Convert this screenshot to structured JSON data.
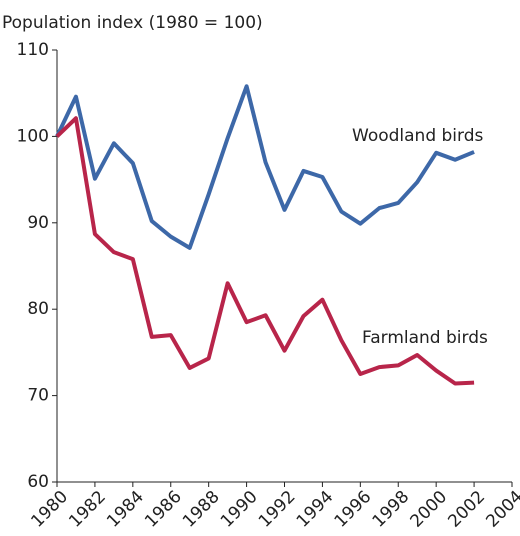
{
  "chart_data": {
    "type": "line",
    "title": "Population index (1980 = 100)",
    "x": [
      1980,
      1981,
      1982,
      1983,
      1984,
      1985,
      1986,
      1987,
      1988,
      1989,
      1990,
      1991,
      1992,
      1993,
      1994,
      1995,
      1996,
      1997,
      1998,
      1999,
      2000,
      2001,
      2002
    ],
    "series": [
      {
        "name": "Woodland birds",
        "color": "#3d68a8",
        "values": [
          100,
          104.6,
          95.1,
          99.2,
          96.9,
          90.2,
          88.4,
          87.1,
          93.3,
          99.8,
          105.8,
          97.0,
          91.5,
          96.0,
          95.3,
          91.3,
          89.9,
          91.7,
          92.3,
          94.7,
          98.1,
          97.3,
          98.2
        ]
      },
      {
        "name": "Farmland birds",
        "color": "#b8254a",
        "values": [
          100,
          102.1,
          88.7,
          86.6,
          85.8,
          76.8,
          77.0,
          73.2,
          74.3,
          83.0,
          78.5,
          79.3,
          75.2,
          79.2,
          81.1,
          76.4,
          72.5,
          73.3,
          73.5,
          74.7,
          72.9,
          71.4,
          71.5
        ]
      }
    ],
    "xlim": [
      1980,
      2004
    ],
    "xticks": [
      1980,
      1982,
      1984,
      1986,
      1988,
      1990,
      1992,
      1994,
      1996,
      1998,
      2000,
      2002,
      2004
    ],
    "ylim": [
      60,
      110
    ],
    "yticks": [
      60,
      70,
      80,
      90,
      100,
      110
    ]
  }
}
